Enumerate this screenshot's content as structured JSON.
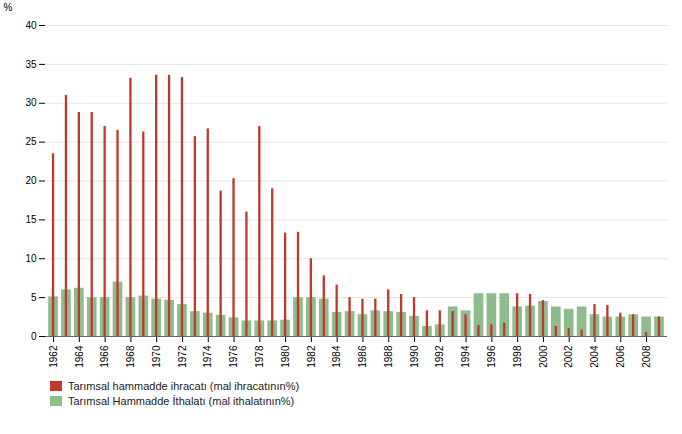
{
  "chart_data": {
    "type": "bar",
    "categories": [
      "1962",
      null,
      "1964",
      null,
      "1966",
      null,
      "1968",
      null,
      "1970",
      null,
      "1972",
      null,
      "1974",
      null,
      "1976",
      null,
      "1978",
      null,
      "1980",
      null,
      "1982",
      null,
      "1984",
      null,
      "1986",
      null,
      "1988",
      null,
      "1990",
      null,
      "1992",
      null,
      "1994",
      null,
      "1996",
      null,
      "1998",
      null,
      "2000",
      null,
      "2002",
      null,
      "2004",
      null,
      "2006",
      null,
      "2008",
      null
    ],
    "series": [
      {
        "name": "Tarımsal hammadde ihracatı (mal ihracatının%)",
        "color": "#C0392B",
        "values": [
          23.5,
          31.0,
          28.8,
          28.8,
          27.0,
          26.5,
          33.2,
          26.3,
          33.6,
          33.58,
          33.3,
          25.7,
          26.7,
          18.7,
          20.3,
          16.0,
          27.0,
          19.0,
          13.3,
          13.4,
          10.0,
          7.8,
          6.6,
          5.0,
          4.8,
          4.8,
          6.0,
          5.4,
          5.0,
          3.3,
          3.3,
          3.2,
          2.8,
          1.4,
          1.5,
          1.7,
          5.5,
          5.4,
          4.6,
          1.3,
          1.0,
          0.8,
          4.1,
          4.0,
          3.0,
          2.8,
          0.5,
          2.5
        ]
      },
      {
        "name": "Tarımsal Hammadde İthalatı (mal ithalatının%)",
        "color": "#8FBC8F",
        "values": [
          5.1,
          6.0,
          6.2,
          5.0,
          5.0,
          7.0,
          5.0,
          5.2,
          4.8,
          4.66,
          4.1,
          3.2,
          3.0,
          2.7,
          2.4,
          2.0,
          2.0,
          2.0,
          2.1,
          5.0,
          5.0,
          4.8,
          3.1,
          3.2,
          2.8,
          3.3,
          3.2,
          3.1,
          2.6,
          1.3,
          1.5,
          3.8,
          3.3,
          5.5,
          5.5,
          5.5,
          3.8,
          3.9,
          4.5,
          3.8,
          3.5,
          3.8,
          2.8,
          2.5,
          2.5,
          2.8,
          2.5,
          2.5
        ]
      }
    ],
    "ylabel": "%",
    "ylim": [
      0,
      40
    ],
    "yticks": [
      0,
      5,
      10,
      15,
      20,
      25,
      30,
      35,
      40
    ],
    "grid": true,
    "legend": "lower left"
  }
}
